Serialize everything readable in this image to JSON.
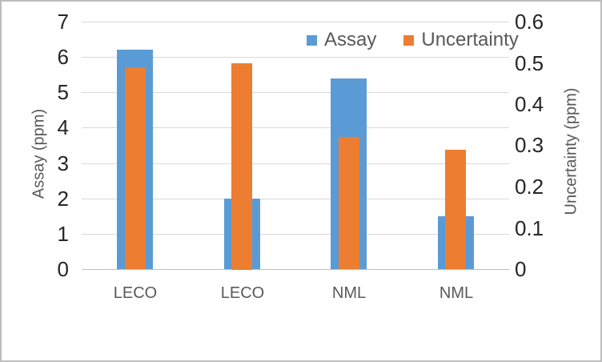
{
  "chart_data": {
    "type": "bar",
    "title": "",
    "categories": [
      "LECO",
      "LECO",
      "NML",
      "NML"
    ],
    "series": [
      {
        "name": "Assay",
        "axis": "left",
        "color": "#5B9BD5",
        "values": [
          6.2,
          2.0,
          5.4,
          1.5
        ]
      },
      {
        "name": "Uncertainty",
        "axis": "right",
        "color": "#ED7D31",
        "values": [
          0.49,
          0.5,
          0.32,
          0.29
        ]
      }
    ],
    "ylabel_left": "Assay (ppm)",
    "ylabel_right": "Uncertainty (ppm)",
    "ylim_left": [
      0,
      7
    ],
    "ylim_right": [
      0,
      0.6
    ],
    "ytick_step_left": 1,
    "ytick_step_right": 0.1,
    "grid": true,
    "legend_position": "top-right",
    "colors": {
      "gridline": "#D9D9D9",
      "axis_line": "#BFBFBF",
      "tick_text": "#262626",
      "label_text": "#595959",
      "frame_border": "#BDBDBD",
      "background": "#FFFFFF"
    }
  }
}
